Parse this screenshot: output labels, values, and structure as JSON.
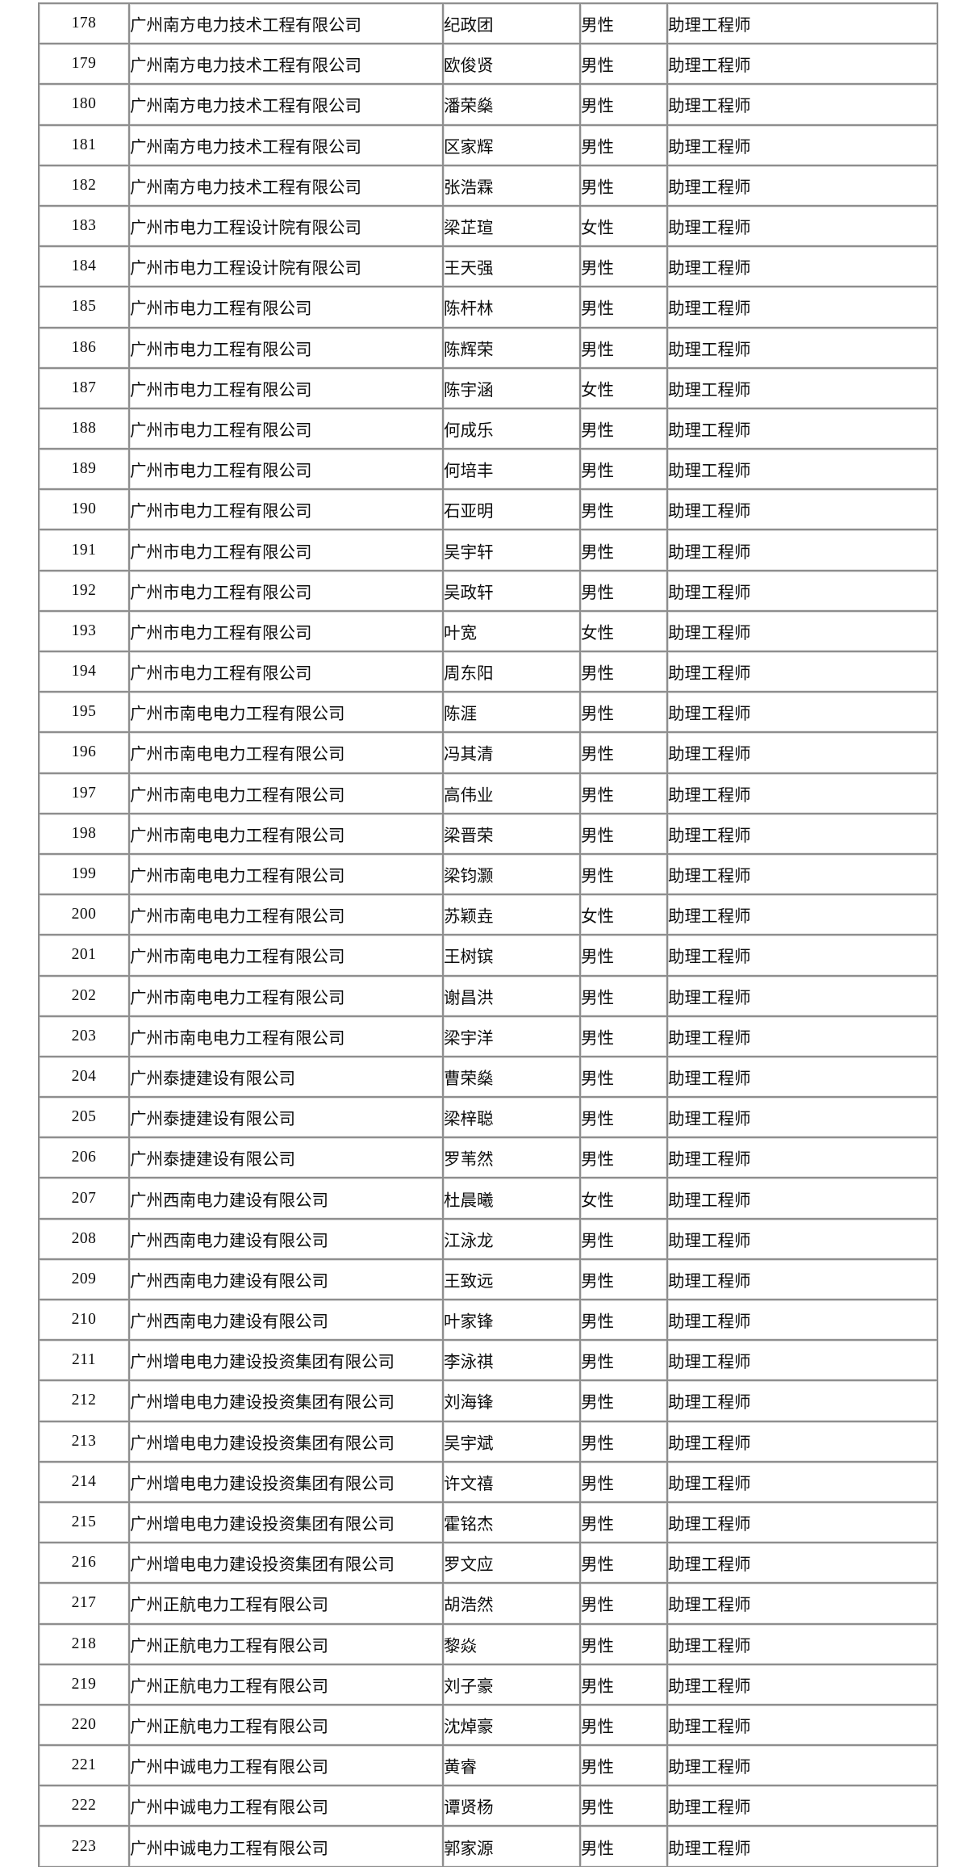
{
  "page": {
    "background_color": "#ffffff",
    "border_color": "#8e8e8e",
    "text_color": "#0d0d0d"
  },
  "table": {
    "rows": [
      [
        "178",
        "广州南方电力技术工程有限公司",
        "纪政团",
        "男性",
        "助理工程师"
      ],
      [
        "179",
        "广州南方电力技术工程有限公司",
        "欧俊贤",
        "男性",
        "助理工程师"
      ],
      [
        "180",
        "广州南方电力技术工程有限公司",
        "潘荣燊",
        "男性",
        "助理工程师"
      ],
      [
        "181",
        "广州南方电力技术工程有限公司",
        "区家辉",
        "男性",
        "助理工程师"
      ],
      [
        "182",
        "广州南方电力技术工程有限公司",
        "张浩霖",
        "男性",
        "助理工程师"
      ],
      [
        "183",
        "广州市电力工程设计院有限公司",
        "梁芷瑄",
        "女性",
        "助理工程师"
      ],
      [
        "184",
        "广州市电力工程设计院有限公司",
        "王天强",
        "男性",
        "助理工程师"
      ],
      [
        "185",
        "广州市电力工程有限公司",
        "陈杆林",
        "男性",
        "助理工程师"
      ],
      [
        "186",
        "广州市电力工程有限公司",
        "陈辉荣",
        "男性",
        "助理工程师"
      ],
      [
        "187",
        "广州市电力工程有限公司",
        "陈宇涵",
        "女性",
        "助理工程师"
      ],
      [
        "188",
        "广州市电力工程有限公司",
        "何成乐",
        "男性",
        "助理工程师"
      ],
      [
        "189",
        "广州市电力工程有限公司",
        "何培丰",
        "男性",
        "助理工程师"
      ],
      [
        "190",
        "广州市电力工程有限公司",
        "石亚明",
        "男性",
        "助理工程师"
      ],
      [
        "191",
        "广州市电力工程有限公司",
        "吴宇轩",
        "男性",
        "助理工程师"
      ],
      [
        "192",
        "广州市电力工程有限公司",
        "吴政轩",
        "男性",
        "助理工程师"
      ],
      [
        "193",
        "广州市电力工程有限公司",
        "叶宽",
        "女性",
        "助理工程师"
      ],
      [
        "194",
        "广州市电力工程有限公司",
        "周东阳",
        "男性",
        "助理工程师"
      ],
      [
        "195",
        "广州市南电电力工程有限公司",
        "陈涯",
        "男性",
        "助理工程师"
      ],
      [
        "196",
        "广州市南电电力工程有限公司",
        "冯其清",
        "男性",
        "助理工程师"
      ],
      [
        "197",
        "广州市南电电力工程有限公司",
        "高伟业",
        "男性",
        "助理工程师"
      ],
      [
        "198",
        "广州市南电电力工程有限公司",
        "梁晋荣",
        "男性",
        "助理工程师"
      ],
      [
        "199",
        "广州市南电电力工程有限公司",
        "梁钧灏",
        "男性",
        "助理工程师"
      ],
      [
        "200",
        "广州市南电电力工程有限公司",
        "苏颖垚",
        "女性",
        "助理工程师"
      ],
      [
        "201",
        "广州市南电电力工程有限公司",
        "王树镔",
        "男性",
        "助理工程师"
      ],
      [
        "202",
        "广州市南电电力工程有限公司",
        "谢昌洪",
        "男性",
        "助理工程师"
      ],
      [
        "203",
        "广州市南电电力工程有限公司",
        "梁宇洋",
        "男性",
        "助理工程师"
      ],
      [
        "204",
        "广州泰捷建设有限公司",
        "曹荣燊",
        "男性",
        "助理工程师"
      ],
      [
        "205",
        "广州泰捷建设有限公司",
        "梁梓聪",
        "男性",
        "助理工程师"
      ],
      [
        "206",
        "广州泰捷建设有限公司",
        "罗苇然",
        "男性",
        "助理工程师"
      ],
      [
        "207",
        "广州西南电力建设有限公司",
        "杜晨曦",
        "女性",
        "助理工程师"
      ],
      [
        "208",
        "广州西南电力建设有限公司",
        "江泳龙",
        "男性",
        "助理工程师"
      ],
      [
        "209",
        "广州西南电力建设有限公司",
        "王致远",
        "男性",
        "助理工程师"
      ],
      [
        "210",
        "广州西南电力建设有限公司",
        "叶家锋",
        "男性",
        "助理工程师"
      ],
      [
        "211",
        "广州增电电力建设投资集团有限公司",
        "李泳祺",
        "男性",
        "助理工程师"
      ],
      [
        "212",
        "广州增电电力建设投资集团有限公司",
        "刘海锋",
        "男性",
        "助理工程师"
      ],
      [
        "213",
        "广州增电电力建设投资集团有限公司",
        "吴宇斌",
        "男性",
        "助理工程师"
      ],
      [
        "214",
        "广州增电电力建设投资集团有限公司",
        "许文禧",
        "男性",
        "助理工程师"
      ],
      [
        "215",
        "广州增电电力建设投资集团有限公司",
        "霍铭杰",
        "男性",
        "助理工程师"
      ],
      [
        "216",
        "广州增电电力建设投资集团有限公司",
        "罗文应",
        "男性",
        "助理工程师"
      ],
      [
        "217",
        "广州正航电力工程有限公司",
        "胡浩然",
        "男性",
        "助理工程师"
      ],
      [
        "218",
        "广州正航电力工程有限公司",
        "黎焱",
        "男性",
        "助理工程师"
      ],
      [
        "219",
        "广州正航电力工程有限公司",
        "刘子豪",
        "男性",
        "助理工程师"
      ],
      [
        "220",
        "广州正航电力工程有限公司",
        "沈焯豪",
        "男性",
        "助理工程师"
      ],
      [
        "221",
        "广州中诚电力工程有限公司",
        "黄睿",
        "男性",
        "助理工程师"
      ],
      [
        "222",
        "广州中诚电力工程有限公司",
        "谭贤杨",
        "男性",
        "助理工程师"
      ],
      [
        "223",
        "广州中诚电力工程有限公司",
        "郭家源",
        "男性",
        "助理工程师"
      ]
    ]
  }
}
